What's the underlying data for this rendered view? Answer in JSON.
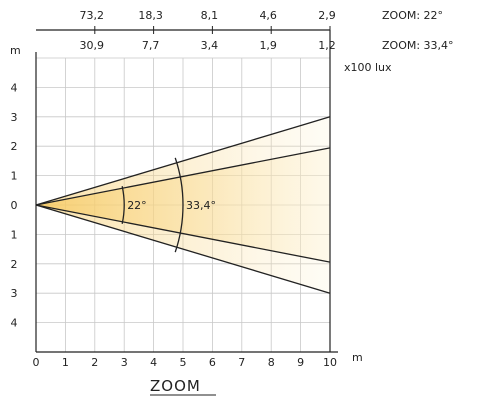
{
  "title": "ZOOM",
  "top_scales": [
    {
      "label": "ZOOM: 22°",
      "values": [
        "73,2",
        "18,3",
        "8,1",
        "4,6",
        "2,9"
      ]
    },
    {
      "label": "ZOOM: 33,4°",
      "values": [
        "30,9",
        "7,7",
        "3,4",
        "1,9",
        "1,2"
      ]
    }
  ],
  "top_unit": "x100 lux",
  "axes": {
    "y_unit": "m",
    "x_unit": "m",
    "x_ticks": [
      "0",
      "1",
      "2",
      "3",
      "4",
      "5",
      "6",
      "7",
      "8",
      "9",
      "10"
    ],
    "y_ticks": [
      "4",
      "3",
      "2",
      "1",
      "0",
      "1",
      "2",
      "3",
      "4"
    ],
    "x_range": [
      0,
      10
    ],
    "y_range": [
      -5,
      5
    ]
  },
  "beams": [
    {
      "label": "22°",
      "angle_deg": 22,
      "arc_radius_m": 3
    },
    {
      "label": "33,4°",
      "angle_deg": 33.4,
      "arc_radius_m": 5
    }
  ],
  "colors": {
    "beam_fill": "#f7d27a",
    "grid": "#c8c8c8",
    "line": "#222222"
  }
}
